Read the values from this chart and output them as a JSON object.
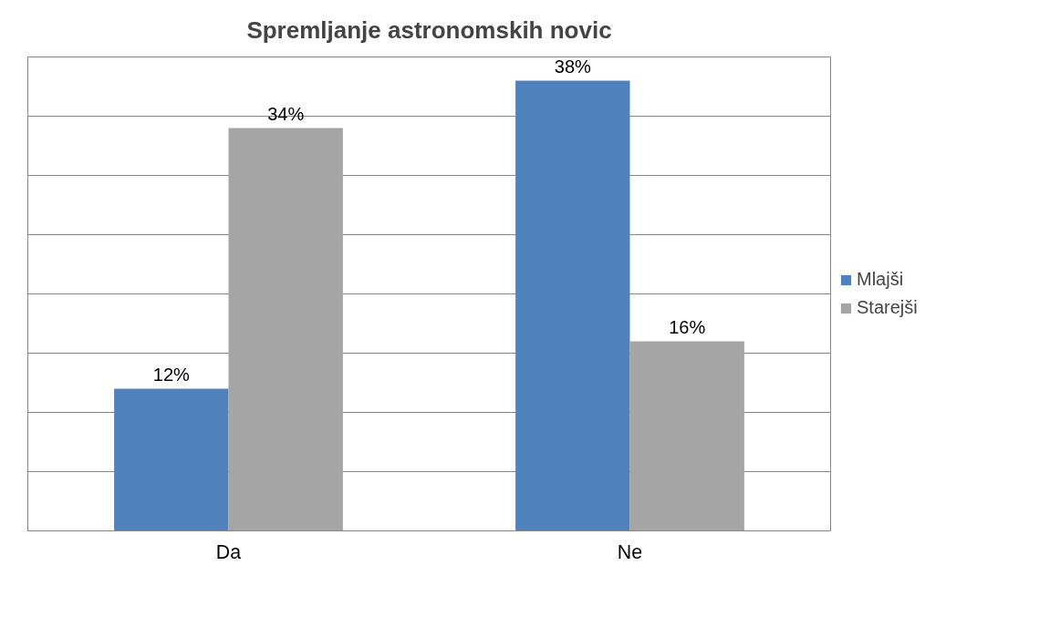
{
  "chart_data": {
    "type": "bar",
    "title": "Spremljanje astronomskih novic",
    "categories": [
      "Da",
      "Ne"
    ],
    "series": [
      {
        "name": "Mlajši",
        "color": "#4f81bd",
        "values": [
          12,
          38
        ],
        "value_labels": [
          "12%",
          "38%"
        ]
      },
      {
        "name": "Starejši",
        "color": "#a5a5a5",
        "values": [
          34,
          16
        ],
        "value_labels": [
          "34%",
          "16%"
        ]
      }
    ],
    "ylim": [
      0,
      40
    ],
    "yticks": [
      {
        "value": 0,
        "label": null
      },
      {
        "value": 5,
        "label": null
      },
      {
        "value": 10,
        "label": null
      },
      {
        "value": 15,
        "label": null
      },
      {
        "value": 20,
        "label": null
      },
      {
        "value": 25,
        "label": null
      },
      {
        "value": 30,
        "label": null
      },
      {
        "value": 35,
        "label": null
      },
      {
        "value": 40,
        "label": null
      }
    ],
    "grid": "y",
    "legend": "right",
    "tick_labels": "x"
  }
}
